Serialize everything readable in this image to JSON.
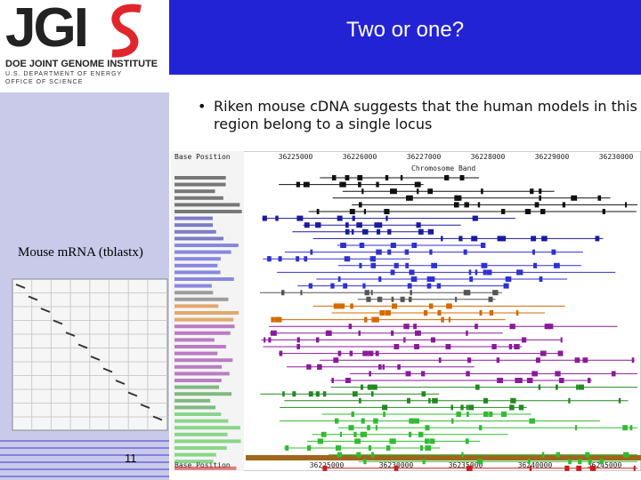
{
  "header": {
    "title": "Two or one?"
  },
  "logo": {
    "mark": "JGI",
    "name": "DOE JOINT GENOME INSTITUTE",
    "dept": "U.S. DEPARTMENT OF ENERGY",
    "office": "OFFICE OF SCIENCE"
  },
  "bullet": "Riken mouse cDNA suggests that the human models in this region belong to a single locus",
  "side_label": "Mouse mRNA (tblastx)",
  "page_number": "11",
  "browser": {
    "top_label": "Base Position",
    "band_label": "Chromosome Band",
    "bottom_label": "Base Position",
    "top_ruler": [
      "36225000",
      "36226000",
      "36227000",
      "36228000",
      "36229000",
      "36230000"
    ],
    "bottom_ruler": [
      "36225000",
      "36230000",
      "36235000",
      "36240000",
      "36245000"
    ]
  }
}
